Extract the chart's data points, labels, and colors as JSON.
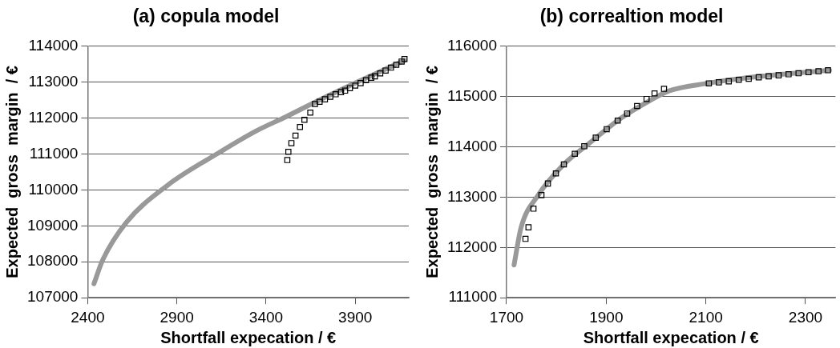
{
  "chart_data": [
    {
      "type": "line",
      "title": "(a) copula model",
      "xlabel": "Shortfall expecation / €",
      "ylabel": "Expected  gross  margin  / €",
      "xlim": [
        2400,
        4200
      ],
      "xticks": [
        2400,
        2900,
        3400,
        3900
      ],
      "ylim": [
        107000,
        114000
      ],
      "yticks": [
        107000,
        108000,
        109000,
        110000,
        111000,
        112000,
        113000,
        114000
      ],
      "grid": "y",
      "legend": false,
      "series": [
        {
          "marker": "none",
          "color": "#999999",
          "x": [
            2435,
            2485,
            2619,
            2848,
            3131,
            3345,
            3514,
            3679,
            3912,
            4176
          ],
          "values": [
            107390,
            108060,
            109110,
            110130,
            111020,
            111640,
            112040,
            112450,
            113000,
            113600
          ]
        },
        {
          "type": "scatter",
          "marker": "square",
          "color": "#000000",
          "x": [
            3519,
            3525,
            3542,
            3565,
            3590,
            3615,
            3648,
            3674,
            3700,
            3730,
            3760,
            3790,
            3820,
            3843,
            3870,
            3900,
            3930,
            3960,
            3990,
            4010,
            4040,
            4070,
            4100,
            4130,
            4160,
            4176
          ],
          "values": [
            110830,
            111060,
            111300,
            111510,
            111750,
            111950,
            112150,
            112390,
            112450,
            112520,
            112590,
            112660,
            112720,
            112760,
            112830,
            112900,
            112970,
            113050,
            113120,
            113160,
            113240,
            113320,
            113400,
            113480,
            113570,
            113640
          ]
        }
      ]
    },
    {
      "type": "line",
      "title": "(b) correaltion model",
      "xlabel": "Shortfall expecation / €",
      "ylabel": "Expected  gross  margin  / €",
      "xlim": [
        1700,
        2360
      ],
      "xticks": [
        1700,
        1900,
        2100,
        2300
      ],
      "ylim": [
        111000,
        116000
      ],
      "yticks": [
        111000,
        112000,
        113000,
        114000,
        115000,
        116000
      ],
      "grid": "y",
      "legend": false,
      "series": [
        {
          "marker": "none",
          "color": "#999999",
          "x": [
            1715,
            1729,
            1763,
            1815,
            1865,
            1930,
            1988,
            2026,
            2103,
            2210,
            2348
          ],
          "values": [
            111650,
            112390,
            113030,
            113650,
            114060,
            114570,
            114920,
            115110,
            115260,
            115400,
            115520
          ]
        },
        {
          "type": "scatter",
          "marker": "square",
          "color": "#000000",
          "x": [
            1738,
            1744,
            1754,
            1770,
            1783,
            1799,
            1815,
            1837,
            1856,
            1879,
            1901,
            1923,
            1942,
            1962,
            1981,
            1997,
            2016,
            2106,
            2126,
            2146,
            2166,
            2186,
            2206,
            2226,
            2246,
            2266,
            2286,
            2306,
            2326,
            2345
          ],
          "values": [
            112170,
            112400,
            112770,
            113040,
            113270,
            113470,
            113650,
            113860,
            114010,
            114180,
            114350,
            114520,
            114660,
            114810,
            114950,
            115060,
            115150,
            115260,
            115280,
            115300,
            115330,
            115350,
            115380,
            115400,
            115420,
            115440,
            115460,
            115480,
            115500,
            115520
          ]
        }
      ]
    }
  ]
}
